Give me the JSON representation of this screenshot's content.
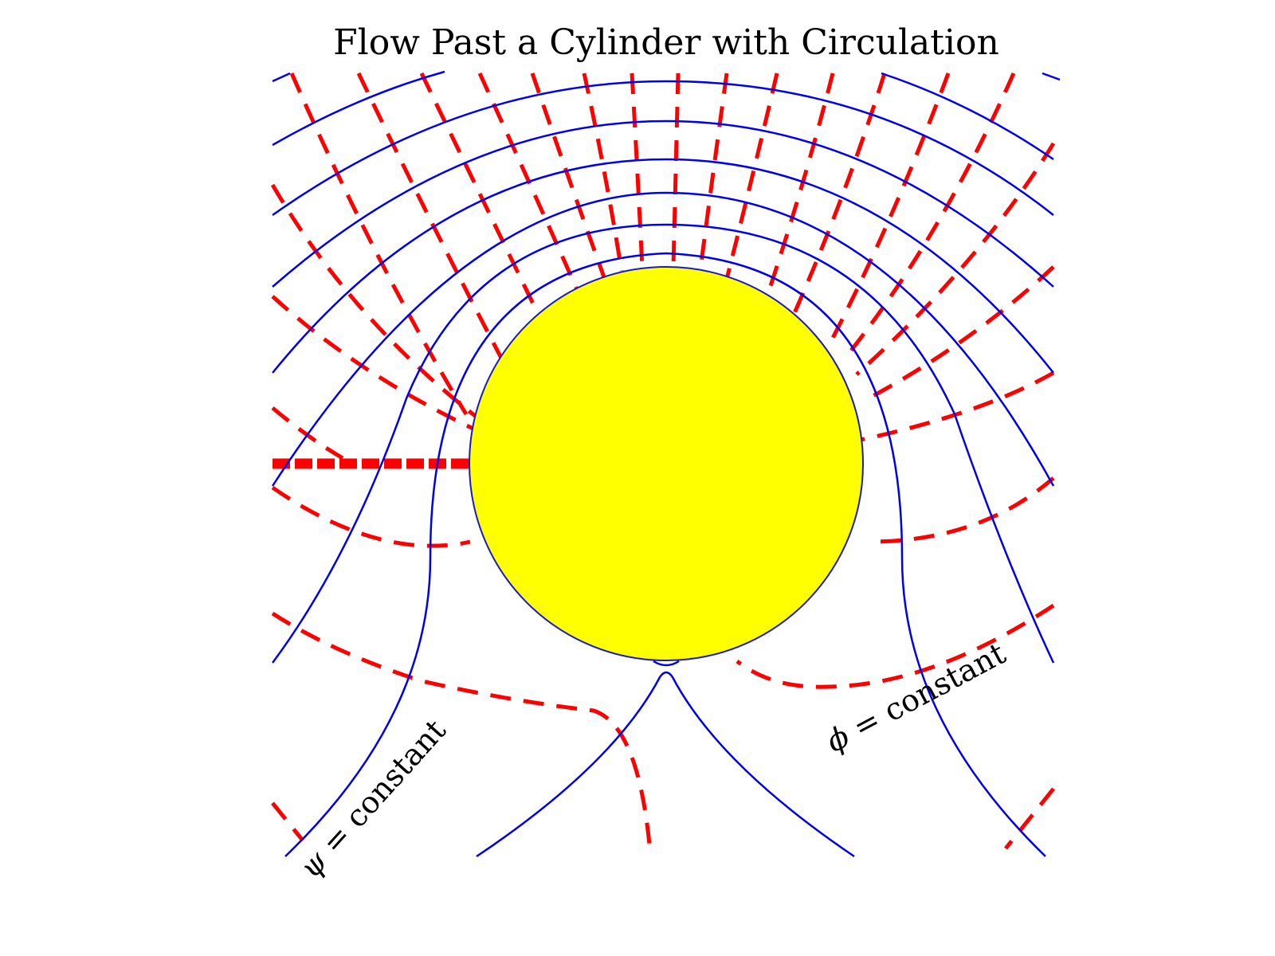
{
  "figure": {
    "title": "Flow Past a Cylinder with Circulation",
    "annotations": [
      {
        "id": "psi",
        "symbol": "ψ",
        "text": " = constant"
      },
      {
        "id": "phi",
        "symbol": "ϕ",
        "text": " = constant"
      }
    ],
    "colors": {
      "streamlines": "#0000ee",
      "potential_lines": "#ff0000",
      "cylinder_fill": "#ffff00",
      "cylinder_edge": "#1a1acc"
    },
    "streamline_style": "solid",
    "potential_line_style": "dashed"
  }
}
